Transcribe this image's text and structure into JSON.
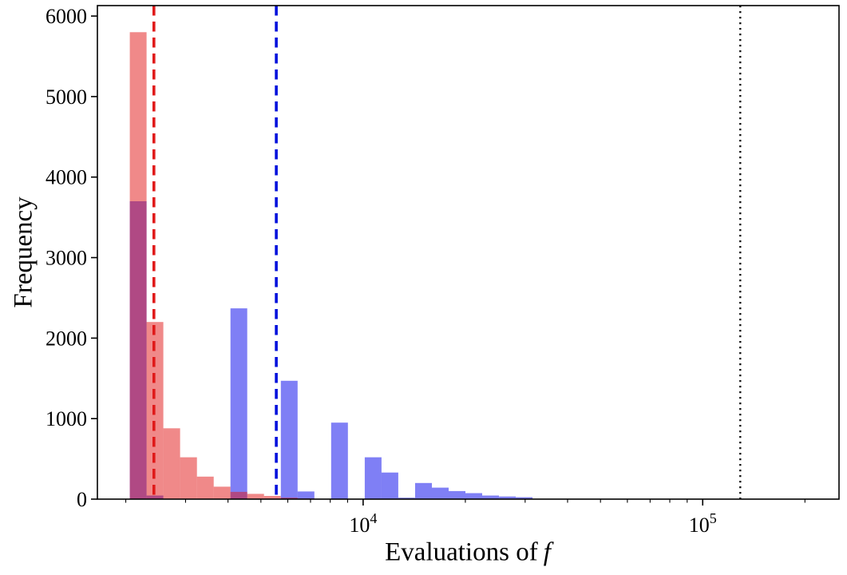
{
  "chart_data": {
    "type": "histogram",
    "title": "",
    "xlabel": "Evaluations of",
    "xlabel_math": "f",
    "ylabel": "Frequency",
    "x_scale": "log10",
    "xlim": [
      1650,
      252000
    ],
    "ylim": [
      0,
      6130
    ],
    "grid": false,
    "legend": "none",
    "y_ticks": [
      0,
      1000,
      2000,
      3000,
      4000,
      5000,
      6000
    ],
    "x_major_ticks": [
      {
        "value": 10000,
        "label_base": "10",
        "label_exp": "4"
      },
      {
        "value": 100000,
        "label_base": "10",
        "label_exp": "5"
      }
    ],
    "x_minor_tick_decades": [
      1000,
      10000,
      100000
    ],
    "bin_edges": [
      2055,
      2303,
      2580,
      2891,
      3240,
      3630,
      4068,
      4558,
      5107,
      5723,
      6413,
      7186,
      8052,
      9022,
      10110,
      11329,
      12694,
      14224,
      15938,
      17859,
      20011,
      22422,
      25124,
      28152,
      31544,
      35345
    ],
    "series": [
      {
        "name": "blue-histogram",
        "color": "rgba(0, 0, 235, 0.5)",
        "counts": [
          3700,
          45,
          0,
          0,
          0,
          0,
          2370,
          0,
          0,
          1470,
          95,
          0,
          950,
          0,
          520,
          330,
          18,
          200,
          143,
          100,
          74,
          45,
          33,
          24,
          0
        ]
      },
      {
        "name": "red-histogram",
        "color": "rgba(225, 20, 20, 0.5)",
        "counts": [
          5800,
          2200,
          880,
          520,
          280,
          155,
          90,
          65,
          40,
          18,
          8,
          0,
          0,
          0,
          0,
          0,
          0,
          0,
          0,
          0,
          0,
          0,
          0,
          0,
          0
        ]
      }
    ],
    "vlines": [
      {
        "name": "red-mean-line",
        "x": 2420,
        "style": "dashed",
        "color": "#E01A1A",
        "width": 3.6
      },
      {
        "name": "blue-mean-line",
        "x": 5550,
        "style": "dashed",
        "color": "#0010DC",
        "width": 3.6
      },
      {
        "name": "budget-line",
        "x": 129000,
        "style": "dotted",
        "color": "#111111",
        "width": 2.4
      }
    ],
    "colors": {
      "red_fill_on_white": "#F08A8A",
      "blue_fill_on_white": "#8080F8",
      "overlap_fill": "#B04A8C",
      "axis": "#000000"
    }
  }
}
